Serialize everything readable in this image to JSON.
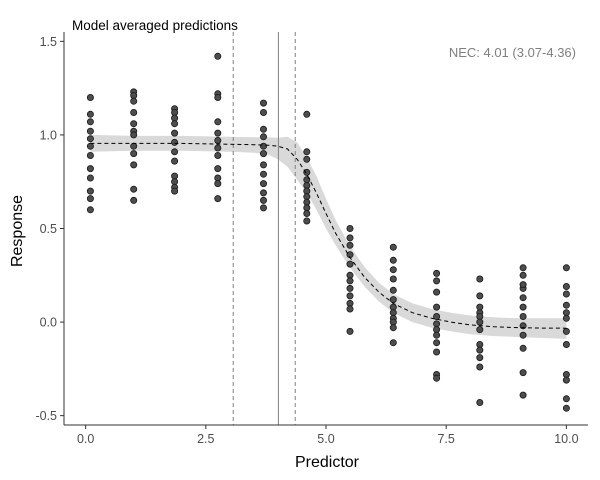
{
  "chart_data": {
    "type": "scatter",
    "title": "Model averaged predictions",
    "xlabel": "Predictor",
    "ylabel": "Response",
    "xlim": [
      -0.45,
      10.45
    ],
    "ylim": [
      -0.55,
      1.55
    ],
    "x_ticks": [
      0,
      2.5,
      5,
      7.5,
      10
    ],
    "x_tick_labels": [
      "0.0",
      "2.5",
      "5.0",
      "7.5",
      "10.0"
    ],
    "y_ticks": [
      -0.5,
      0,
      0.5,
      1,
      1.5
    ],
    "y_tick_labels": [
      "-0.5",
      "0.0",
      "0.5",
      "1.0",
      "1.5"
    ],
    "grid": false,
    "annotation": {
      "text": "NEC: 4.01 (3.07-4.36)",
      "placement": "top-right",
      "color": "#7f7f7f"
    },
    "nec": {
      "estimate": 4.01,
      "lower": 3.07,
      "upper": 4.36
    },
    "colors": {
      "point_fill": "#4d4d4d",
      "point_stroke": "#1a1a1a",
      "ribbon": "#d9d9d9",
      "line": "#000000",
      "nec_line": "#808080",
      "axis": "#333333"
    },
    "points": [
      {
        "x": 0.1,
        "y": 1.2
      },
      {
        "x": 0.1,
        "y": 1.11
      },
      {
        "x": 0.1,
        "y": 1.07
      },
      {
        "x": 0.1,
        "y": 1.02
      },
      {
        "x": 0.1,
        "y": 0.98
      },
      {
        "x": 0.1,
        "y": 0.94
      },
      {
        "x": 0.1,
        "y": 0.89
      },
      {
        "x": 0.1,
        "y": 0.82
      },
      {
        "x": 0.1,
        "y": 0.77
      },
      {
        "x": 0.1,
        "y": 0.7
      },
      {
        "x": 0.1,
        "y": 0.66
      },
      {
        "x": 0.1,
        "y": 0.6
      },
      {
        "x": 1.0,
        "y": 1.23
      },
      {
        "x": 1.0,
        "y": 1.21
      },
      {
        "x": 1.0,
        "y": 1.18
      },
      {
        "x": 1.0,
        "y": 1.12
      },
      {
        "x": 1.0,
        "y": 1.06
      },
      {
        "x": 1.0,
        "y": 1.02
      },
      {
        "x": 1.0,
        "y": 1.0
      },
      {
        "x": 1.0,
        "y": 0.94
      },
      {
        "x": 1.0,
        "y": 0.9
      },
      {
        "x": 1.0,
        "y": 0.84
      },
      {
        "x": 1.0,
        "y": 0.71
      },
      {
        "x": 1.0,
        "y": 0.65
      },
      {
        "x": 1.85,
        "y": 1.14
      },
      {
        "x": 1.85,
        "y": 1.12
      },
      {
        "x": 1.85,
        "y": 1.09
      },
      {
        "x": 1.85,
        "y": 1.06
      },
      {
        "x": 1.85,
        "y": 1.01
      },
      {
        "x": 1.85,
        "y": 0.96
      },
      {
        "x": 1.85,
        "y": 0.91
      },
      {
        "x": 1.85,
        "y": 0.86
      },
      {
        "x": 1.85,
        "y": 0.78
      },
      {
        "x": 1.85,
        "y": 0.75
      },
      {
        "x": 1.85,
        "y": 0.72
      },
      {
        "x": 1.85,
        "y": 0.7
      },
      {
        "x": 2.75,
        "y": 1.42
      },
      {
        "x": 2.75,
        "y": 1.22
      },
      {
        "x": 2.75,
        "y": 1.2
      },
      {
        "x": 2.75,
        "y": 1.07
      },
      {
        "x": 2.75,
        "y": 1.01
      },
      {
        "x": 2.75,
        "y": 0.97
      },
      {
        "x": 2.75,
        "y": 0.93
      },
      {
        "x": 2.75,
        "y": 0.89
      },
      {
        "x": 2.75,
        "y": 0.82
      },
      {
        "x": 2.75,
        "y": 0.77
      },
      {
        "x": 2.75,
        "y": 0.74
      },
      {
        "x": 2.75,
        "y": 0.66
      },
      {
        "x": 3.7,
        "y": 1.17
      },
      {
        "x": 3.7,
        "y": 1.12
      },
      {
        "x": 3.7,
        "y": 1.03
      },
      {
        "x": 3.7,
        "y": 0.99
      },
      {
        "x": 3.7,
        "y": 0.94
      },
      {
        "x": 3.7,
        "y": 0.9
      },
      {
        "x": 3.7,
        "y": 0.84
      },
      {
        "x": 3.7,
        "y": 0.79
      },
      {
        "x": 3.7,
        "y": 0.74
      },
      {
        "x": 3.7,
        "y": 0.69
      },
      {
        "x": 3.7,
        "y": 0.65
      },
      {
        "x": 3.7,
        "y": 0.61
      },
      {
        "x": 4.6,
        "y": 1.11
      },
      {
        "x": 4.6,
        "y": 0.91
      },
      {
        "x": 4.6,
        "y": 0.87
      },
      {
        "x": 4.6,
        "y": 0.8
      },
      {
        "x": 4.6,
        "y": 0.76
      },
      {
        "x": 4.6,
        "y": 0.73
      },
      {
        "x": 4.6,
        "y": 0.7
      },
      {
        "x": 4.6,
        "y": 0.67
      },
      {
        "x": 4.6,
        "y": 0.64
      },
      {
        "x": 4.6,
        "y": 0.61
      },
      {
        "x": 4.6,
        "y": 0.58
      },
      {
        "x": 4.6,
        "y": 0.54
      },
      {
        "x": 5.5,
        "y": 0.5
      },
      {
        "x": 5.5,
        "y": 0.45
      },
      {
        "x": 5.5,
        "y": 0.41
      },
      {
        "x": 5.5,
        "y": 0.36
      },
      {
        "x": 5.5,
        "y": 0.31
      },
      {
        "x": 5.5,
        "y": 0.25
      },
      {
        "x": 5.5,
        "y": 0.22
      },
      {
        "x": 5.5,
        "y": 0.18
      },
      {
        "x": 5.5,
        "y": 0.14
      },
      {
        "x": 5.5,
        "y": 0.1
      },
      {
        "x": 5.5,
        "y": 0.07
      },
      {
        "x": 5.5,
        "y": -0.05
      },
      {
        "x": 6.4,
        "y": 0.4
      },
      {
        "x": 6.4,
        "y": 0.33
      },
      {
        "x": 6.4,
        "y": 0.28
      },
      {
        "x": 6.4,
        "y": 0.23
      },
      {
        "x": 6.4,
        "y": 0.17
      },
      {
        "x": 6.4,
        "y": 0.12
      },
      {
        "x": 6.4,
        "y": 0.08
      },
      {
        "x": 6.4,
        "y": 0.05
      },
      {
        "x": 6.4,
        "y": 0.02
      },
      {
        "x": 6.4,
        "y": 0.0
      },
      {
        "x": 6.4,
        "y": -0.03
      },
      {
        "x": 6.4,
        "y": -0.11
      },
      {
        "x": 7.3,
        "y": 0.26
      },
      {
        "x": 7.3,
        "y": 0.22
      },
      {
        "x": 7.3,
        "y": 0.16
      },
      {
        "x": 7.3,
        "y": 0.08
      },
      {
        "x": 7.3,
        "y": -0.01
      },
      {
        "x": 7.3,
        "y": -0.04
      },
      {
        "x": 7.3,
        "y": -0.07
      },
      {
        "x": 7.3,
        "y": -0.11
      },
      {
        "x": 7.3,
        "y": -0.16
      },
      {
        "x": 7.3,
        "y": -0.28
      },
      {
        "x": 7.3,
        "y": -0.3
      },
      {
        "x": 7.3,
        "y": 0.03
      },
      {
        "x": 8.2,
        "y": 0.23
      },
      {
        "x": 8.2,
        "y": 0.14
      },
      {
        "x": 8.2,
        "y": 0.05
      },
      {
        "x": 8.2,
        "y": 0.03
      },
      {
        "x": 8.2,
        "y": 0.0
      },
      {
        "x": 8.2,
        "y": -0.04
      },
      {
        "x": 8.2,
        "y": -0.12
      },
      {
        "x": 8.2,
        "y": -0.15
      },
      {
        "x": 8.2,
        "y": -0.19
      },
      {
        "x": 8.2,
        "y": -0.24
      },
      {
        "x": 8.2,
        "y": -0.43
      },
      {
        "x": 8.2,
        "y": 0.08
      },
      {
        "x": 9.1,
        "y": 0.29
      },
      {
        "x": 9.1,
        "y": 0.25
      },
      {
        "x": 9.1,
        "y": 0.18
      },
      {
        "x": 9.1,
        "y": 0.13
      },
      {
        "x": 9.1,
        "y": 0.08
      },
      {
        "x": 9.1,
        "y": 0.03
      },
      {
        "x": 9.1,
        "y": -0.02
      },
      {
        "x": 9.1,
        "y": -0.07
      },
      {
        "x": 9.1,
        "y": -0.14
      },
      {
        "x": 9.1,
        "y": -0.27
      },
      {
        "x": 9.1,
        "y": -0.39
      },
      {
        "x": 9.1,
        "y": 0.2
      },
      {
        "x": 10.0,
        "y": 0.29
      },
      {
        "x": 10.0,
        "y": 0.19
      },
      {
        "x": 10.0,
        "y": 0.15
      },
      {
        "x": 10.0,
        "y": 0.09
      },
      {
        "x": 10.0,
        "y": 0.05
      },
      {
        "x": 10.0,
        "y": 0.02
      },
      {
        "x": 10.0,
        "y": -0.05
      },
      {
        "x": 10.0,
        "y": -0.12
      },
      {
        "x": 10.0,
        "y": -0.28
      },
      {
        "x": 10.0,
        "y": -0.31
      },
      {
        "x": 10.0,
        "y": -0.41
      },
      {
        "x": 10.0,
        "y": -0.46
      }
    ],
    "fit": {
      "x": [
        0.1,
        1.0,
        2.0,
        3.0,
        3.5,
        3.8,
        4.0,
        4.2,
        4.4,
        4.6,
        4.8,
        5.0,
        5.2,
        5.5,
        5.8,
        6.1,
        6.4,
        6.8,
        7.2,
        7.6,
        8.0,
        8.5,
        9.0,
        9.5,
        10.0
      ],
      "y": [
        0.955,
        0.955,
        0.955,
        0.95,
        0.948,
        0.945,
        0.94,
        0.925,
        0.87,
        0.79,
        0.69,
        0.58,
        0.475,
        0.345,
        0.24,
        0.16,
        0.1,
        0.05,
        0.02,
        0.0,
        -0.015,
        -0.025,
        -0.03,
        -0.032,
        -0.033
      ],
      "lower": [
        0.91,
        0.915,
        0.915,
        0.91,
        0.905,
        0.895,
        0.87,
        0.83,
        0.76,
        0.69,
        0.6,
        0.5,
        0.41,
        0.29,
        0.19,
        0.11,
        0.05,
        0.0,
        -0.03,
        -0.05,
        -0.065,
        -0.075,
        -0.08,
        -0.085,
        -0.09
      ],
      "upper": [
        1.0,
        0.995,
        0.995,
        0.99,
        0.988,
        0.988,
        0.985,
        0.99,
        0.96,
        0.88,
        0.78,
        0.66,
        0.545,
        0.405,
        0.295,
        0.21,
        0.15,
        0.1,
        0.07,
        0.05,
        0.035,
        0.025,
        0.02,
        0.02,
        0.02
      ]
    }
  }
}
